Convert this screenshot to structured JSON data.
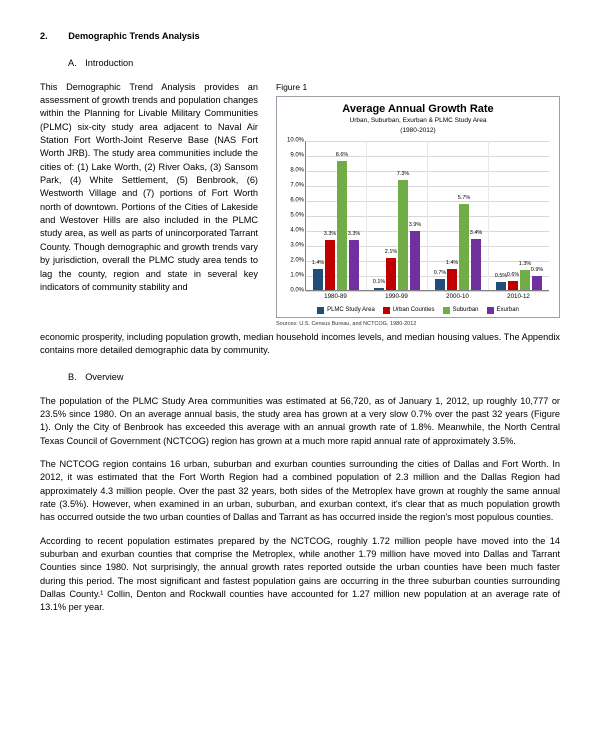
{
  "section": {
    "number": "2.",
    "title": "Demographic Trends Analysis"
  },
  "subA": {
    "letter": "A.",
    "title": "Introduction"
  },
  "subB": {
    "letter": "B.",
    "title": "Overview"
  },
  "intro_text": "This Demographic Trend Analysis provides an assessment of growth trends and population changes within the Planning for Livable Military Communities (PLMC) six-city study area adjacent to Naval Air Station Fort Worth-Joint Reserve Base (NAS Fort Worth JRB). The study area communities include the cities of: (1) Lake Worth, (2) River Oaks, (3) Sansom Park, (4) White Settlement, (5) Benbrook, (6) Westworth Village and (7) portions of Fort Worth north of downtown. Portions of the Cities of Lakeside and Westover Hills are also included in the PLMC study area, as well as parts of unincorporated Tarrant County. Though demographic and growth trends vary by jurisdiction, overall the PLMC study area  tends to lag the county, region and state in several key indicators of community stability and",
  "intro_cont": "economic prosperity, including population growth, median household incomes levels, and median housing values.  The Appendix contains more detailed demographic data by community.",
  "overview_p1": "The population of the PLMC Study Area communities was estimated at 56,720, as of January 1, 2012, up roughly 10,777 or 23.5% since 1980.  On an average annual basis, the study area has grown at a very slow 0.7% over the past 32 years (Figure 1).  Only the City of Benbrook has exceeded this average with an annual growth rate of 1.8%.  Meanwhile, the North Central Texas Council of Government (NCTCOG) region has grown at a much more rapid annual rate of approximately 3.5%.",
  "overview_p2": "The NCTCOG region contains 16 urban, suburban and exurban counties surrounding the cities of Dallas and Fort Worth.  In 2012, it was estimated that the Fort Worth Region had a combined population of 2.3 million and the Dallas Region had approximately 4.3 million people.  Over the past 32 years, both sides of the Metroplex have grown at roughly the same annual rate (3.5%).  However, when examined in an urban, suburban, and exurban context, it's clear that as much population growth has occurred outside the two urban counties of Dallas and Tarrant as has occurred inside the region's most populous counties.",
  "overview_p3": "According to recent population estimates prepared by the NCTCOG, roughly 1.72 million people have moved into the 14 suburban and exurban counties that comprise the Metroplex, while another 1.79 million have moved into Dallas and Tarrant Counties since 1980.  Not surprisingly, the annual growth rates reported outside the urban counties have been much faster during this period.  The most significant and fastest population gains are occurring in the three suburban counties surrounding Dallas County.¹  Collin, Denton and Rockwall counties have accounted for 1.27 million new population at an average rate of 13.1% per year.",
  "figure": {
    "caption": "Figure 1",
    "title": "Average Annual Growth Rate",
    "subtitle": "Urban, Suburban, Exurban & PLMC Study Area",
    "subtitle2": "(1980-2012)",
    "y_max": 10.0,
    "y_ticks": [
      "10.0%",
      "9.0%",
      "8.0%",
      "7.0%",
      "6.0%",
      "5.0%",
      "4.0%",
      "3.0%",
      "2.0%",
      "1.0%",
      "0.0%"
    ],
    "categories": [
      "1980-89",
      "1990-99",
      "2000-10",
      "2010-12"
    ],
    "series": [
      {
        "name": "PLMC Study Area",
        "color": "#1f4e79"
      },
      {
        "name": "Urban Counties",
        "color": "#c00000"
      },
      {
        "name": "Suburban",
        "color": "#70ad47"
      },
      {
        "name": "Exurban",
        "color": "#7030a0"
      }
    ],
    "data": [
      {
        "labels": [
          "1.4%",
          "3.3%",
          "8.6%",
          "3.3%"
        ],
        "values": [
          1.4,
          3.3,
          8.6,
          3.3
        ]
      },
      {
        "labels": [
          "0.1%",
          "2.1%",
          "7.3%",
          "3.9%"
        ],
        "values": [
          0.1,
          2.1,
          7.3,
          3.9
        ]
      },
      {
        "labels": [
          "0.7%",
          "1.4%",
          "5.7%",
          "3.4%"
        ],
        "values": [
          0.7,
          1.4,
          5.7,
          3.4
        ]
      },
      {
        "labels": [
          "0.5%",
          "0.6%",
          "1.3%",
          "0.9%"
        ],
        "values": [
          0.5,
          0.6,
          1.3,
          0.9
        ]
      }
    ],
    "source": "Sources: U.S. Census Bureau, and NCTCOG, 1980-2012"
  }
}
